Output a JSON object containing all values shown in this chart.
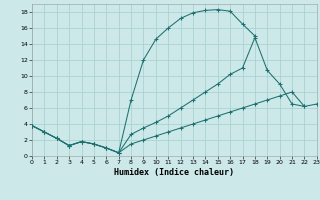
{
  "xlabel": "Humidex (Indice chaleur)",
  "background_color": "#cce8e8",
  "grid_color": "#aad2d2",
  "line_color": "#1e7070",
  "xlim": [
    0,
    23
  ],
  "ylim": [
    0,
    19
  ],
  "xticks": [
    0,
    1,
    2,
    3,
    4,
    5,
    6,
    7,
    8,
    9,
    10,
    11,
    12,
    13,
    14,
    15,
    16,
    17,
    18,
    19,
    20,
    21,
    22,
    23
  ],
  "yticks": [
    0,
    2,
    4,
    6,
    8,
    10,
    12,
    14,
    16,
    18
  ],
  "line1_x": [
    0,
    1,
    2,
    3,
    4,
    5,
    6,
    7,
    8,
    9,
    10,
    11,
    12,
    13,
    14,
    15,
    16,
    17,
    18
  ],
  "line1_y": [
    3.8,
    3.0,
    2.2,
    1.3,
    1.8,
    1.5,
    1.0,
    0.4,
    7.0,
    12.0,
    14.6,
    16.0,
    17.2,
    17.9,
    18.2,
    18.3,
    18.1,
    16.5,
    15.0
  ],
  "line2_x": [
    0,
    1,
    2,
    3,
    4,
    5,
    6,
    7,
    8,
    9,
    10,
    11,
    12,
    13,
    14,
    15,
    16,
    17,
    18,
    19,
    20,
    21,
    22
  ],
  "line2_y": [
    3.8,
    3.0,
    2.2,
    1.3,
    1.8,
    1.5,
    1.0,
    0.4,
    2.7,
    3.5,
    4.2,
    5.0,
    6.0,
    7.0,
    8.0,
    9.0,
    10.2,
    11.0,
    14.8,
    10.7,
    9.0,
    6.5,
    6.2
  ],
  "line3_x": [
    0,
    1,
    2,
    3,
    4,
    5,
    6,
    7,
    8,
    9,
    10,
    11,
    12,
    13,
    14,
    15,
    16,
    17,
    18,
    19,
    20,
    21,
    22,
    23
  ],
  "line3_y": [
    3.8,
    3.0,
    2.2,
    1.3,
    1.8,
    1.5,
    1.0,
    0.4,
    1.5,
    2.0,
    2.5,
    3.0,
    3.5,
    4.0,
    4.5,
    5.0,
    5.5,
    6.0,
    6.5,
    7.0,
    7.5,
    8.0,
    6.2,
    6.5
  ]
}
